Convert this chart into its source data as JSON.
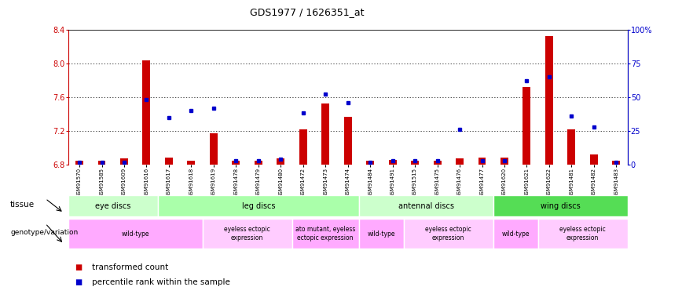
{
  "title": "GDS1977 / 1626351_at",
  "samples": [
    "GSM91570",
    "GSM91585",
    "GSM91609",
    "GSM91616",
    "GSM91617",
    "GSM91618",
    "GSM91619",
    "GSM91478",
    "GSM91479",
    "GSM91480",
    "GSM91472",
    "GSM91473",
    "GSM91474",
    "GSM91484",
    "GSM91491",
    "GSM91515",
    "GSM91475",
    "GSM91476",
    "GSM91477",
    "GSM91620",
    "GSM91621",
    "GSM91622",
    "GSM91481",
    "GSM91482",
    "GSM91483"
  ],
  "red_values": [
    6.85,
    6.85,
    6.87,
    8.03,
    6.88,
    6.85,
    7.17,
    6.85,
    6.85,
    6.87,
    7.22,
    7.52,
    7.37,
    6.85,
    6.86,
    6.85,
    6.85,
    6.87,
    6.88,
    6.88,
    7.72,
    8.32,
    7.22,
    6.92,
    6.85
  ],
  "blue_values": [
    2,
    2,
    2,
    48,
    35,
    40,
    42,
    3,
    3,
    4,
    38,
    52,
    46,
    2,
    3,
    3,
    3,
    26,
    3,
    3,
    62,
    65,
    36,
    28,
    2
  ],
  "ylim_left": [
    6.8,
    8.4
  ],
  "ylim_right": [
    0,
    100
  ],
  "yticks_left": [
    6.8,
    7.2,
    7.6,
    8.0,
    8.4
  ],
  "yticks_right": [
    0,
    25,
    50,
    75,
    100
  ],
  "ytick_labels_right": [
    "0",
    "25",
    "50",
    "75",
    "100%"
  ],
  "tissue_regions": [
    {
      "label": "eye discs",
      "start": 0,
      "end": 3,
      "color": "#ccffcc"
    },
    {
      "label": "leg discs",
      "start": 4,
      "end": 12,
      "color": "#aaffaa"
    },
    {
      "label": "antennal discs",
      "start": 13,
      "end": 18,
      "color": "#ccffcc"
    },
    {
      "label": "wing discs",
      "start": 19,
      "end": 24,
      "color": "#55dd55"
    }
  ],
  "genotype_regions": [
    {
      "label": "wild-type",
      "start": 0,
      "end": 5,
      "color": "#ffaaff"
    },
    {
      "label": "eyeless ectopic\nexpression",
      "start": 6,
      "end": 9,
      "color": "#ffccff"
    },
    {
      "label": "ato mutant, eyeless\nectopic expression",
      "start": 10,
      "end": 12,
      "color": "#ffaaff"
    },
    {
      "label": "wild-type",
      "start": 13,
      "end": 14,
      "color": "#ffaaff"
    },
    {
      "label": "eyeless ectopic\nexpression",
      "start": 15,
      "end": 18,
      "color": "#ffccff"
    },
    {
      "label": "wild-type",
      "start": 19,
      "end": 20,
      "color": "#ffaaff"
    },
    {
      "label": "eyeless ectopic\nexpression",
      "start": 21,
      "end": 24,
      "color": "#ffccff"
    }
  ],
  "bar_color": "#cc0000",
  "dot_color": "#0000cc",
  "background_color": "#ffffff"
}
